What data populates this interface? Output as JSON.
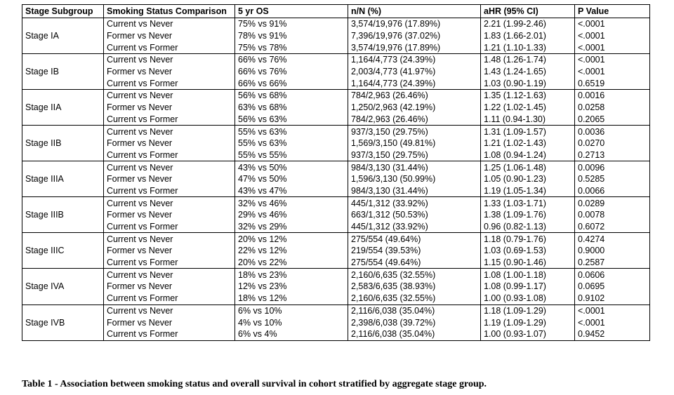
{
  "table": {
    "headers": [
      "Stage Subgroup",
      "Smoking Status Comparison",
      "5 yr OS",
      "n/N (%)",
      "aHR (95% CI)",
      "P Value"
    ],
    "groups": [
      {
        "stage": "Stage IA",
        "rows": [
          [
            "Current vs Never",
            "75% vs 91%",
            "3,574/19,976 (17.89%)",
            "2.21 (1.99-2.46)",
            "<.0001"
          ],
          [
            "Former vs Never",
            "78% vs 91%",
            "7,396/19,976 (37.02%)",
            "1.83 (1.66-2.01)",
            "<.0001"
          ],
          [
            "Current vs Former",
            "75% vs 78%",
            "3,574/19,976 (17.89%)",
            "1.21 (1.10-1.33)",
            "<.0001"
          ]
        ]
      },
      {
        "stage": "Stage IB",
        "rows": [
          [
            "Current vs Never",
            "66% vs 76%",
            "1,164/4,773 (24.39%)",
            "1.48 (1.26-1.74)",
            "<.0001"
          ],
          [
            "Former vs Never",
            "66% vs 76%",
            "2,003/4,773 (41.97%)",
            "1.43 (1.24-1.65)",
            "<.0001"
          ],
          [
            "Current vs Former",
            "66% vs 66%",
            "1,164/4,773 (24.39%)",
            "1.03 (0.90-1.19)",
            "0.6519"
          ]
        ]
      },
      {
        "stage": "Stage IIA",
        "rows": [
          [
            "Current vs Never",
            "56% vs 68%",
            "784/2,963 (26.46%)",
            "1.35 (1.12-1.63)",
            "0.0016"
          ],
          [
            "Former vs Never",
            "63% vs 68%",
            "1,250/2,963 (42.19%)",
            "1.22 (1.02-1.45)",
            "0.0258"
          ],
          [
            "Current vs Former",
            "56% vs 63%",
            "784/2,963 (26.46%)",
            "1.11 (0.94-1.30)",
            "0.2065"
          ]
        ]
      },
      {
        "stage": "Stage IIB",
        "rows": [
          [
            "Current vs Never",
            "55% vs 63%",
            "937/3,150 (29.75%)",
            "1.31 (1.09-1.57)",
            "0.0036"
          ],
          [
            "Former vs Never",
            "55% vs 63%",
            "1,569/3,150 (49.81%)",
            "1.21 (1.02-1.43)",
            "0.0270"
          ],
          [
            "Current vs Former",
            "55% vs 55%",
            "937/3,150 (29.75%)",
            "1.08 (0.94-1.24)",
            "0.2713"
          ]
        ]
      },
      {
        "stage": "Stage IIIA",
        "rows": [
          [
            "Current vs Never",
            "43% vs 50%",
            "984/3,130 (31.44%)",
            "1.25 (1.06-1.48)",
            "0.0096"
          ],
          [
            "Former vs Never",
            "47% vs 50%",
            "1,596/3,130 (50.99%)",
            "1.05 (0.90-1.23)",
            "0.5285"
          ],
          [
            "Current vs Former",
            "43% vs 47%",
            "984/3,130 (31.44%)",
            "1.19 (1.05-1.34)",
            "0.0066"
          ]
        ]
      },
      {
        "stage": "Stage IIIB",
        "rows": [
          [
            "Current vs Never",
            "32% vs 46%",
            "445/1,312 (33.92%)",
            "1.33 (1.03-1.71)",
            "0.0289"
          ],
          [
            "Former vs Never",
            "29% vs 46%",
            "663/1,312 (50.53%)",
            "1.38 (1.09-1.76)",
            "0.0078"
          ],
          [
            "Current vs Former",
            "32% vs 29%",
            "445/1,312 (33.92%)",
            "0.96 (0.82-1.13)",
            "0.6072"
          ]
        ]
      },
      {
        "stage": "Stage IIIC",
        "rows": [
          [
            "Current vs Never",
            "20% vs 12%",
            "275/554 (49.64%)",
            "1.18 (0.79-1.76)",
            "0.4274"
          ],
          [
            "Former vs Never",
            "22% vs 12%",
            "219/554 (39.53%)",
            "1.03 (0.69-1.53)",
            "0.9000"
          ],
          [
            "Current vs Former",
            "20% vs 22%",
            "275/554 (49.64%)",
            "1.15 (0.90-1.46)",
            "0.2587"
          ]
        ]
      },
      {
        "stage": "Stage IVA",
        "rows": [
          [
            "Current vs Never",
            "18% vs 23%",
            "2,160/6,635 (32.55%)",
            "1.08 (1.00-1.18)",
            "0.0606"
          ],
          [
            "Former vs Never",
            "12% vs 23%",
            "2,583/6,635 (38.93%)",
            "1.08 (0.99-1.17)",
            "0.0695"
          ],
          [
            "Current vs Former",
            "18% vs 12%",
            "2,160/6,635 (32.55%)",
            "1.00 (0.93-1.08)",
            "0.9102"
          ]
        ]
      },
      {
        "stage": "Stage IVB",
        "rows": [
          [
            "Current vs Never",
            "6% vs 10%",
            "2,116/6,038 (35.04%)",
            "1.18 (1.09-1.29)",
            "<.0001"
          ],
          [
            "Former vs Never",
            "4% vs 10%",
            "2,398/6,038 (39.72%)",
            "1.19 (1.09-1.29)",
            "<.0001"
          ],
          [
            "Current vs Former",
            "6% vs 4%",
            "2,116/6,038 (35.04%)",
            "1.00 (0.93-1.07)",
            "0.9452"
          ]
        ]
      }
    ]
  },
  "caption": "Table 1 - Association between smoking status and overall survival in cohort stratified by aggregate stage group."
}
